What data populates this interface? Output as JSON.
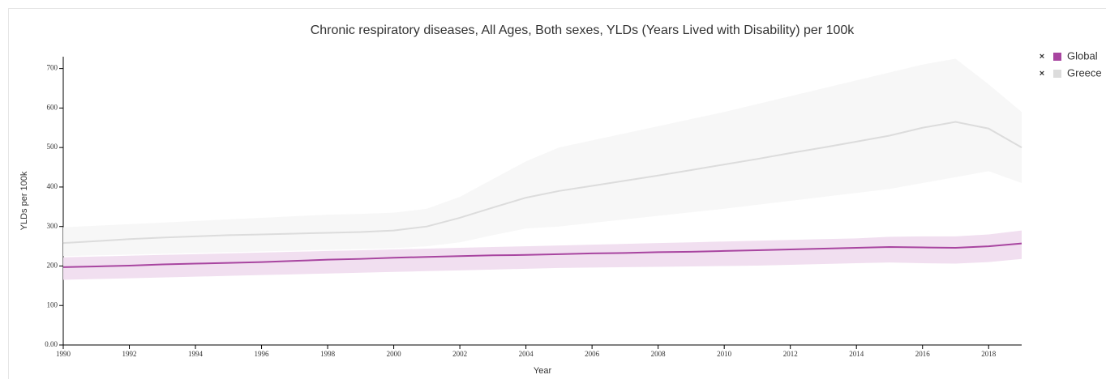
{
  "chart_data": {
    "type": "line",
    "title": "Chronic respiratory diseases, All Ages, Both sexes, YLDs (Years Lived with Disability) per 100k",
    "x_label": "Year",
    "y_label": "YLDs per 100k",
    "x": [
      1990,
      1991,
      1992,
      1993,
      1994,
      1995,
      1996,
      1997,
      1998,
      1999,
      2000,
      2001,
      2002,
      2003,
      2004,
      2005,
      2006,
      2007,
      2008,
      2009,
      2010,
      2011,
      2012,
      2013,
      2014,
      2015,
      2016,
      2017,
      2018,
      2019
    ],
    "xlim": [
      1990,
      2019
    ],
    "xticks": [
      1990,
      1992,
      1994,
      1996,
      1998,
      2000,
      2002,
      2004,
      2006,
      2008,
      2010,
      2012,
      2014,
      2016,
      2018
    ],
    "ylim": [
      0,
      730
    ],
    "yticks": [
      {
        "value": 0,
        "label": "0.00"
      },
      100,
      200,
      300,
      400,
      500,
      600,
      700
    ],
    "legend": "top-right",
    "series": [
      {
        "name": "Greece",
        "color": "#dcdcdc",
        "band_color": "#f7f7f7",
        "values": [
          258,
          263,
          268,
          272,
          275,
          278,
          280,
          282,
          284,
          286,
          290,
          300,
          322,
          348,
          373,
          390,
          403,
          416,
          429,
          443,
          457,
          471,
          486,
          500,
          515,
          530,
          550,
          565,
          548,
          500
        ],
        "lower": [
          225,
          227,
          229,
          231,
          233,
          235,
          237,
          239,
          241,
          243,
          245,
          250,
          260,
          278,
          295,
          300,
          309,
          318,
          327,
          336,
          345,
          355,
          365,
          375,
          385,
          395,
          410,
          425,
          440,
          410
        ],
        "upper": [
          298,
          302,
          306,
          310,
          314,
          318,
          322,
          326,
          330,
          332,
          335,
          345,
          375,
          420,
          465,
          500,
          518,
          536,
          554,
          572,
          590,
          610,
          630,
          650,
          670,
          690,
          710,
          725,
          660,
          590
        ]
      },
      {
        "name": "Global",
        "color": "#a845a0",
        "band_color": "#f1dff0",
        "values": [
          197,
          199,
          201,
          204,
          206,
          208,
          210,
          213,
          216,
          218,
          221,
          223,
          225,
          227,
          228,
          230,
          232,
          233,
          235,
          236,
          238,
          240,
          242,
          244,
          246,
          248,
          247,
          246,
          250,
          257
        ],
        "lower": [
          165,
          167,
          169,
          171,
          173,
          175,
          177,
          179,
          181,
          183,
          185,
          187,
          189,
          191,
          193,
          195,
          196,
          197,
          198,
          199,
          200,
          201,
          203,
          205,
          207,
          209,
          207,
          206,
          210,
          218
        ],
        "upper": [
          222,
          224,
          226,
          228,
          230,
          232,
          234,
          236,
          238,
          240,
          242,
          244,
          246,
          248,
          250,
          252,
          254,
          256,
          258,
          260,
          262,
          264,
          266,
          268,
          270,
          274,
          275,
          275,
          280,
          290
        ]
      }
    ]
  }
}
